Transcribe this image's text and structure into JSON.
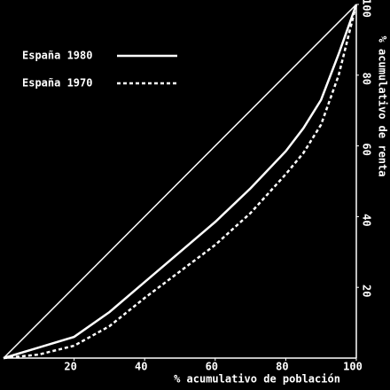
{
  "chart_data": {
    "type": "line",
    "xlabel": "% acumulativo de población",
    "ylabel": "% acumulativo de renta",
    "xlim": [
      0,
      100
    ],
    "ylim": [
      0,
      100
    ],
    "xticks": [
      20,
      40,
      60,
      80,
      100
    ],
    "yticks": [
      20,
      40,
      60,
      80,
      100
    ],
    "legend": "upper left",
    "reference": {
      "x": [
        0,
        100
      ],
      "values": [
        0,
        100
      ],
      "color": "#ffffff"
    },
    "series": [
      {
        "name": "España 1980",
        "color": "#ffffff",
        "dash": "solid",
        "x": [
          0,
          10,
          20,
          30,
          40,
          50,
          60,
          70,
          80,
          85,
          90,
          95,
          100
        ],
        "values": [
          0,
          3,
          6,
          13,
          21.5,
          30,
          38.5,
          48,
          58.5,
          65,
          73,
          86,
          100
        ]
      },
      {
        "name": "España 1970",
        "color": "#ffffff",
        "dash": "dashed",
        "x": [
          0,
          10,
          20,
          30,
          40,
          50,
          60,
          70,
          80,
          85,
          90,
          95,
          100
        ],
        "values": [
          0,
          1,
          3.5,
          9,
          17,
          24.5,
          32,
          41,
          52,
          58,
          66,
          80,
          100
        ]
      }
    ]
  }
}
